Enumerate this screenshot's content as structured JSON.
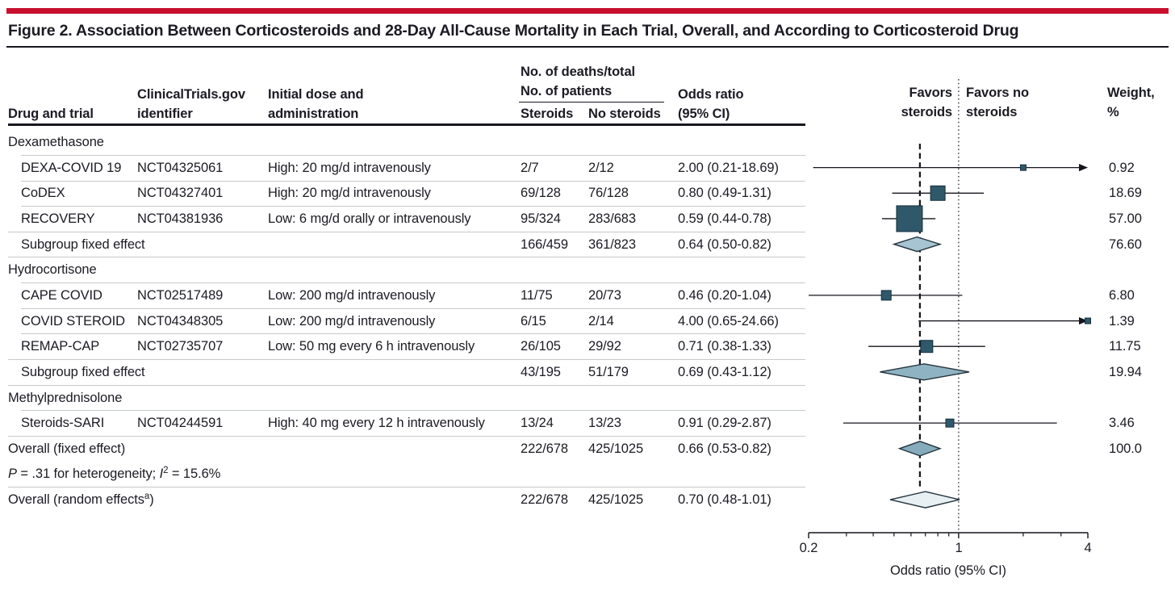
{
  "title": "Figure 2. Association Between Corticosteroids and 28-Day All-Cause Mortality in Each Trial, Overall, and According to Corticosteroid Drug",
  "colors": {
    "accent_red": "#C8102E",
    "square": "#30586B",
    "marker_border": "#152e3a",
    "diamond_border": "#25343d",
    "line": "#15151d",
    "text": "#1b1b23",
    "separator": "#c6c9cb"
  },
  "header": {
    "col_drug": "Drug and trial",
    "col_nct_1": "ClinicalTrials.gov",
    "col_nct_2": "identifier",
    "col_dose_1": "Initial dose and",
    "col_dose_2": "administration",
    "deaths_1": "No. of deaths/total",
    "deaths_2": "No. of patients",
    "col_steroids": "Steroids",
    "col_nosteroids": "No steroids",
    "col_or_1": "Odds ratio",
    "col_or_2": "(95% CI)",
    "favors_left_1": "Favors",
    "favors_left_2": "steroids",
    "favors_right_1": "Favors no",
    "favors_right_2": "steroids",
    "col_weight_1": "Weight,",
    "col_weight_2": "%"
  },
  "axis": {
    "tick_left": "0.2",
    "tick_mid": "1",
    "tick_right": "4",
    "label": "Odds ratio (95% CI)"
  },
  "rows": [
    {
      "type": "section",
      "label": "Dexamethasone",
      "sep": false
    },
    {
      "type": "trial",
      "label": "DEXA-COVID 19",
      "nct": "NCT04325061",
      "dose": "High: 20 mg/d intravenously",
      "deaths_steroids": "2/7",
      "deaths_no_steroids": "2/12",
      "or_text": "2.00 (0.21-18.69)",
      "or": 2.0,
      "lo": 0.21,
      "hi": 18.69,
      "weight": "0.92",
      "size": 7,
      "sep": true
    },
    {
      "type": "trial",
      "label": "CoDEX",
      "nct": "NCT04327401",
      "dose": "High: 20 mg/d intravenously",
      "deaths_steroids": "69/128",
      "deaths_no_steroids": "76/128",
      "or_text": "0.80 (0.49-1.31)",
      "or": 0.8,
      "lo": 0.49,
      "hi": 1.31,
      "weight": "18.69",
      "size": 18,
      "sep": true
    },
    {
      "type": "trial",
      "label": "RECOVERY",
      "nct": "NCT04381936",
      "dose": "Low: 6 mg/d orally or intravenously",
      "deaths_steroids": "95/324",
      "deaths_no_steroids": "283/683",
      "or_text": "0.59 (0.44-0.78)",
      "or": 0.59,
      "lo": 0.44,
      "hi": 0.78,
      "weight": "57.00",
      "size": 32,
      "sep": true
    },
    {
      "type": "subgroup",
      "label": "Subgroup fixed effect",
      "deaths_steroids": "166/459",
      "deaths_no_steroids": "361/823",
      "or_text": "0.64 (0.50-0.82)",
      "or": 0.64,
      "lo": 0.5,
      "hi": 0.82,
      "weight": "76.60",
      "fill": "#A6C4D1",
      "hh": 9,
      "sep": true
    },
    {
      "type": "section",
      "label": "Hydrocortisone",
      "sep": true
    },
    {
      "type": "trial",
      "label": "CAPE COVID",
      "nct": "NCT02517489",
      "dose": "Low: 200 mg/d intravenously",
      "deaths_steroids": "11/75",
      "deaths_no_steroids": "20/73",
      "or_text": "0.46 (0.20-1.04)",
      "or": 0.46,
      "lo": 0.2,
      "hi": 1.04,
      "weight": "6.80",
      "size": 12,
      "sep": true
    },
    {
      "type": "trial",
      "label": "COVID STEROID",
      "nct": "NCT04348305",
      "dose": "Low: 200 mg/d intravenously",
      "deaths_steroids": "6/15",
      "deaths_no_steroids": "2/14",
      "or_text": "4.00 (0.65-24.66)",
      "or": 4.0,
      "lo": 0.65,
      "hi": 24.66,
      "weight": "1.39",
      "size": 7,
      "sep": true
    },
    {
      "type": "trial",
      "label": "REMAP-CAP",
      "nct": "NCT02735707",
      "dose": "Low: 50 mg every 6 h intravenously",
      "deaths_steroids": "26/105",
      "deaths_no_steroids": "29/92",
      "or_text": "0.71 (0.38-1.33)",
      "or": 0.71,
      "lo": 0.38,
      "hi": 1.33,
      "weight": "11.75",
      "size": 15,
      "sep": true
    },
    {
      "type": "subgroup",
      "label": "Subgroup fixed effect",
      "deaths_steroids": "43/195",
      "deaths_no_steroids": "51/179",
      "or_text": "0.69 (0.43-1.12)",
      "or": 0.69,
      "lo": 0.43,
      "hi": 1.12,
      "weight": "19.94",
      "fill": "#8FB3C2",
      "hh": 10,
      "sep": true
    },
    {
      "type": "section",
      "label": "Methylprednisolone",
      "sep": true
    },
    {
      "type": "trial",
      "label": "Steroids-SARI",
      "nct": "NCT04244591",
      "dose": "High: 40 mg every 12 h intravenously",
      "deaths_steroids": "13/24",
      "deaths_no_steroids": "13/23",
      "or_text": "0.91 (0.29-2.87)",
      "or": 0.91,
      "lo": 0.29,
      "hi": 2.87,
      "weight": "3.46",
      "size": 10,
      "sep": true
    },
    {
      "type": "summary",
      "label": "Overall (fixed effect)",
      "deaths_steroids": "222/678",
      "deaths_no_steroids": "425/1025",
      "or_text": "0.66 (0.53-0.82)",
      "or": 0.66,
      "lo": 0.53,
      "hi": 0.82,
      "weight": "100.0",
      "fill": "#86ABBD",
      "hh": 9,
      "sep": true
    },
    {
      "type": "note",
      "parts": [
        {
          "t": "P",
          "i": true
        },
        {
          "t": " = .31 for heterogeneity; "
        },
        {
          "t": "I",
          "i": true
        },
        {
          "t": "2",
          "sup": true
        },
        {
          "t": " = 15.6%"
        }
      ],
      "sep": false
    },
    {
      "type": "summary",
      "label_parts": [
        {
          "t": "Overall (random effects"
        },
        {
          "t": "a",
          "sup": true
        },
        {
          "t": ")"
        }
      ],
      "deaths_steroids": "222/678",
      "deaths_no_steroids": "425/1025",
      "or_text": "0.70 (0.48-1.01)",
      "or": 0.7,
      "lo": 0.48,
      "hi": 1.01,
      "weight": "",
      "fill": "#E9F0F4",
      "hh": 10,
      "sep": true
    }
  ],
  "chart_data": {
    "type": "forest",
    "x_scale": "log",
    "xlim": [
      0.2,
      4
    ],
    "x_ticks": [
      0.2,
      1,
      4
    ],
    "x_minor_ticks": [
      0.3,
      0.4,
      0.5,
      0.6,
      0.7,
      0.8,
      0.9,
      2,
      3
    ],
    "xlabel": "Odds ratio (95% CI)",
    "reference_or": 1,
    "overall_fixed_or": 0.66,
    "studies": [
      {
        "name": "DEXA-COVID 19",
        "group": "Dexamethasone",
        "or": 2.0,
        "ci": [
          0.21,
          18.69
        ],
        "weight_pct": 0.92
      },
      {
        "name": "CoDEX",
        "group": "Dexamethasone",
        "or": 0.8,
        "ci": [
          0.49,
          1.31
        ],
        "weight_pct": 18.69
      },
      {
        "name": "RECOVERY",
        "group": "Dexamethasone",
        "or": 0.59,
        "ci": [
          0.44,
          0.78
        ],
        "weight_pct": 57.0
      },
      {
        "name": "CAPE COVID",
        "group": "Hydrocortisone",
        "or": 0.46,
        "ci": [
          0.2,
          1.04
        ],
        "weight_pct": 6.8
      },
      {
        "name": "COVID STEROID",
        "group": "Hydrocortisone",
        "or": 4.0,
        "ci": [
          0.65,
          24.66
        ],
        "weight_pct": 1.39
      },
      {
        "name": "REMAP-CAP",
        "group": "Hydrocortisone",
        "or": 0.71,
        "ci": [
          0.38,
          1.33
        ],
        "weight_pct": 11.75
      },
      {
        "name": "Steroids-SARI",
        "group": "Methylprednisolone",
        "or": 0.91,
        "ci": [
          0.29,
          2.87
        ],
        "weight_pct": 3.46
      }
    ],
    "subgroups": [
      {
        "name": "Dexamethasone subgroup fixed effect",
        "or": 0.64,
        "ci": [
          0.5,
          0.82
        ],
        "weight_pct": 76.6
      },
      {
        "name": "Hydrocortisone subgroup fixed effect",
        "or": 0.69,
        "ci": [
          0.43,
          1.12
        ],
        "weight_pct": 19.94
      }
    ],
    "overall": [
      {
        "name": "Overall (fixed effect)",
        "or": 0.66,
        "ci": [
          0.53,
          0.82
        ],
        "weight_pct": 100.0
      },
      {
        "name": "Overall (random effects)",
        "or": 0.7,
        "ci": [
          0.48,
          1.01
        ]
      }
    ],
    "heterogeneity_note": "P = .31 for heterogeneity; I2 = 15.6%"
  }
}
